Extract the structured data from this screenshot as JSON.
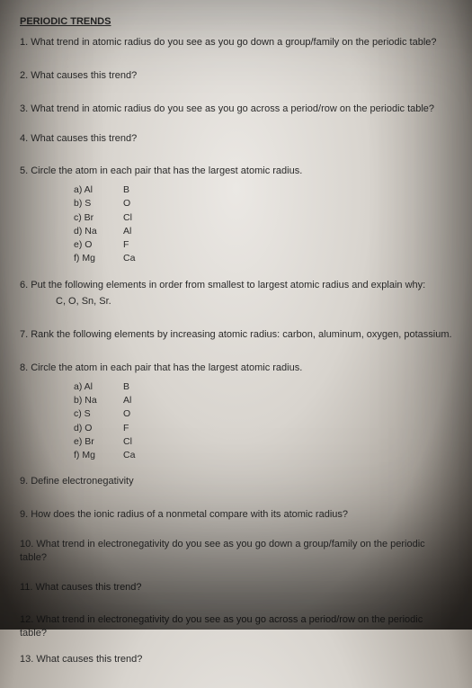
{
  "title": "PERIODIC TRENDS",
  "questions": {
    "q1": "1. What trend in atomic radius do you see as you go down a group/family on the periodic table?",
    "q2": "2. What causes this trend?",
    "q3": "3. What trend in atomic radius do you see as you go across a period/row on the periodic table?",
    "q4": "4. What causes this trend?",
    "q5": "5. Circle the atom in each pair that has the largest atomic radius.",
    "q6": "6. Put the following elements in order from smallest to largest atomic radius and explain why:",
    "q6sub": "C, O, Sn, Sr.",
    "q7": "7.   Rank the following elements by increasing atomic radius:  carbon, aluminum, oxygen, potassium.",
    "q8": "8.   Circle the atom in each pair that has the largest atomic radius.",
    "q9a": "9. Define electronegativity",
    "q9b": "9.   How does the ionic radius of a nonmetal compare with its atomic radius?",
    "q10": "10. What trend in electronegativity do you see as you go down a group/family on the periodic table?",
    "q11": "11. What causes this trend?",
    "q12": "12. What trend in electronegativity do you see as you go across a period/row on the periodic table?",
    "q13": "13. What causes this trend?"
  },
  "pairs5": [
    {
      "l": "a)",
      "a": "Al",
      "b": "B"
    },
    {
      "l": "b)",
      "a": "S",
      "b": "O"
    },
    {
      "l": "c)",
      "a": "Br",
      "b": "Cl"
    },
    {
      "l": "d)",
      "a": "Na",
      "b": "Al"
    },
    {
      "l": "e)",
      "a": "O",
      "b": "F"
    },
    {
      "l": "f)",
      "a": "Mg",
      "b": "Ca"
    }
  ],
  "pairs8": [
    {
      "l": "a)",
      "a": "Al",
      "b": "B"
    },
    {
      "l": "b)",
      "a": "Na",
      "b": "Al"
    },
    {
      "l": "c)",
      "a": "S",
      "b": "O"
    },
    {
      "l": "d)",
      "a": "O",
      "b": "F"
    },
    {
      "l": "e)",
      "a": "Br",
      "b": "Cl"
    },
    {
      "l": "f)",
      "a": "Mg",
      "b": "Ca"
    }
  ]
}
